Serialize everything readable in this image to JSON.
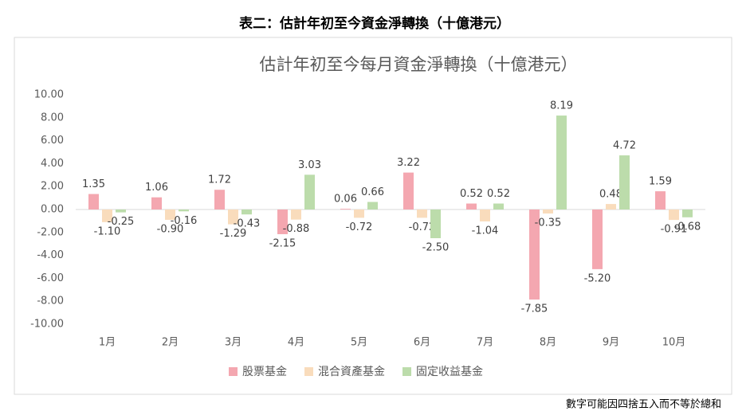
{
  "header": {
    "title": "表二：估計年初至今資金淨轉換（十億港元）"
  },
  "chart_data": {
    "type": "bar",
    "title": "估計年初至今每月資金淨轉換（十億港元）",
    "categories": [
      "1月",
      "2月",
      "3月",
      "4月",
      "5月",
      "6月",
      "7月",
      "8月",
      "9月",
      "10月"
    ],
    "series": [
      {
        "name": "股票基金",
        "color": "#f4a7b0",
        "values": [
          1.35,
          1.06,
          1.72,
          -2.15,
          0.06,
          3.22,
          0.52,
          -7.85,
          -5.2,
          1.59
        ],
        "value_labels": [
          "1.35",
          "1.06",
          "1.72",
          "-2.15",
          "0.06",
          "3.22",
          "0.52",
          "-7.85",
          "-5.20",
          "1.59"
        ]
      },
      {
        "name": "混合資產基金",
        "color": "#f9dcbc",
        "values": [
          -1.1,
          -0.9,
          -1.29,
          -0.88,
          -0.72,
          -0.72,
          -1.04,
          -0.35,
          0.48,
          -0.91
        ],
        "value_labels": [
          "-1.10",
          "-0.90",
          "-1.29",
          "-0.88",
          "-0.72",
          "-0.72",
          "-1.04",
          "-0.35",
          "0.48",
          "-0.91"
        ]
      },
      {
        "name": "固定收益基金",
        "color": "#bcdcab",
        "values": [
          -0.25,
          -0.16,
          -0.43,
          3.03,
          0.66,
          -2.5,
          0.52,
          8.19,
          4.72,
          -0.68
        ],
        "value_labels": [
          "-0.25",
          "-0.16",
          "-0.43",
          "3.03",
          "0.66",
          "-2.50",
          "0.52",
          "8.19",
          "4.72",
          "-0.68"
        ]
      }
    ],
    "ylim": [
      -10,
      10
    ],
    "yticks": [
      {
        "value": 10,
        "label": "10.00"
      },
      {
        "value": 8,
        "label": "8.00"
      },
      {
        "value": 6,
        "label": "6.00"
      },
      {
        "value": 4,
        "label": "4.00"
      },
      {
        "value": 2,
        "label": "2.00"
      },
      {
        "value": 0,
        "label": "0.00"
      },
      {
        "value": -2,
        "label": "-2.00"
      },
      {
        "value": -4,
        "label": "-4.00"
      },
      {
        "value": -6,
        "label": "-6.00"
      },
      {
        "value": -8,
        "label": "-8.00"
      },
      {
        "value": -10,
        "label": "-10.00"
      }
    ],
    "grid": false,
    "legend": "bottom"
  },
  "footnote": "數字可能因四捨五入而不等於總和"
}
